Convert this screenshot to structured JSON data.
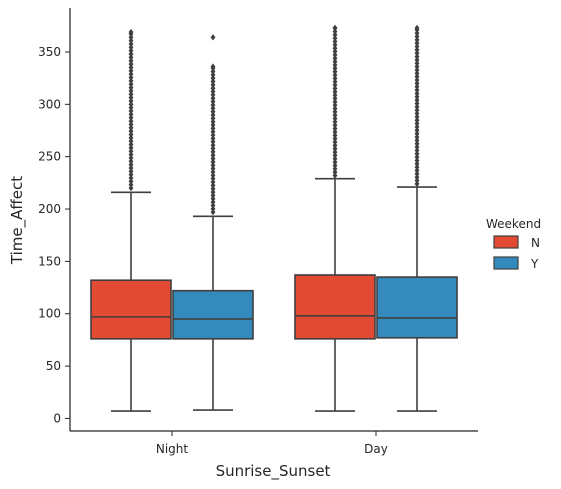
{
  "chart_data": {
    "type": "box",
    "xlabel": "Sunrise_Sunset",
    "ylabel": "Time_Affect",
    "ylim": [
      -12,
      392
    ],
    "yticks": [
      0,
      50,
      100,
      150,
      200,
      250,
      300,
      350
    ],
    "categories": [
      "Night",
      "Day"
    ],
    "legend": {
      "title": "Weekend",
      "position": "right"
    },
    "grid": false,
    "series": [
      {
        "name": "N",
        "color": "#e24a33",
        "boxes": [
          {
            "category": "Night",
            "whisker_low": 7,
            "q1": 76,
            "median": 97,
            "q3": 132,
            "whisker_high": 216,
            "outlier_min": 220,
            "outlier_max": 369
          },
          {
            "category": "Day",
            "whisker_low": 7,
            "q1": 76,
            "median": 98,
            "q3": 137,
            "whisker_high": 229,
            "outlier_min": 232,
            "outlier_max": 373
          }
        ]
      },
      {
        "name": "Y",
        "color": "#348abd",
        "boxes": [
          {
            "category": "Night",
            "whisker_low": 8,
            "q1": 76,
            "median": 95,
            "q3": 122,
            "whisker_high": 193,
            "outlier_min": 197,
            "outlier_max": 336,
            "extra_outliers": [
              364
            ]
          },
          {
            "category": "Day",
            "whisker_low": 7,
            "q1": 77,
            "median": 96,
            "q3": 135,
            "whisker_high": 221,
            "outlier_min": 224,
            "outlier_max": 373
          }
        ]
      }
    ]
  }
}
